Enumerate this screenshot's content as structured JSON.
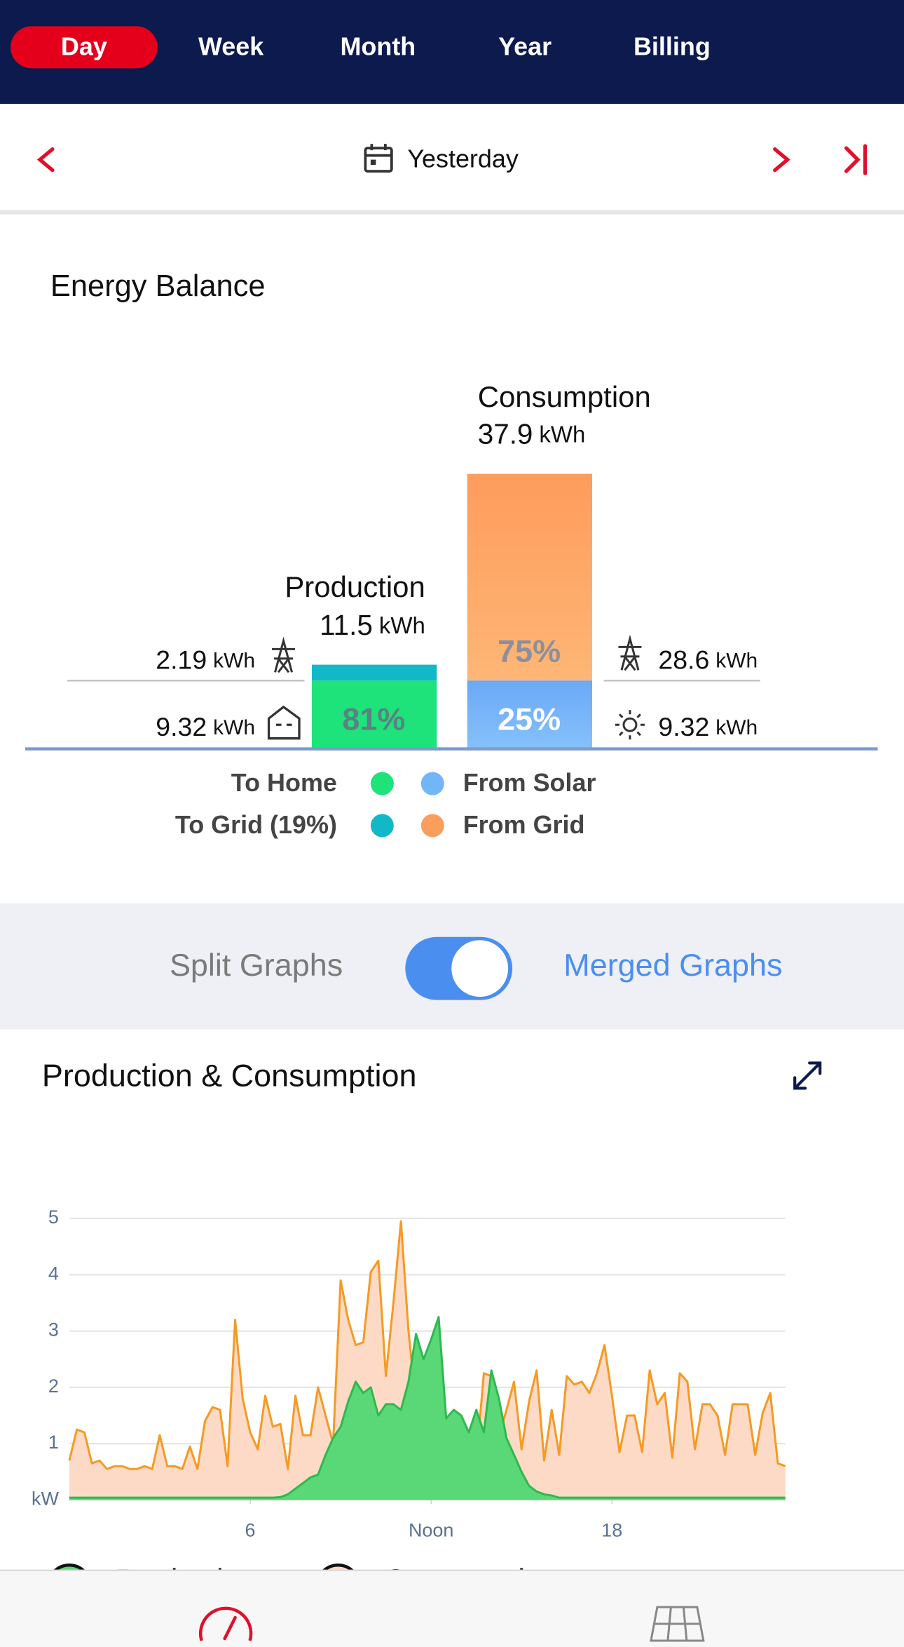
{
  "tabs": [
    "Day",
    "Week",
    "Month",
    "Year",
    "Billing"
  ],
  "active_tab": 0,
  "date_label": "Yesterday",
  "energy_balance": {
    "title": "Energy Balance",
    "unit": "kWh",
    "production": {
      "label": "Production",
      "total": 11.5,
      "to_grid": 2.19,
      "to_home": 9.32,
      "to_home_pct": "81%"
    },
    "consumption": {
      "label": "Consumption",
      "total": 37.9,
      "from_grid": 28.6,
      "from_solar": 9.32,
      "from_grid_pct": "75%",
      "from_solar_pct": "25%"
    },
    "legend": [
      {
        "label": "To Home",
        "color": "#1ee27a"
      },
      {
        "label": "To Grid (19%)",
        "color": "#12b8c8"
      },
      {
        "label": "From Solar",
        "color": "#72b6f7"
      },
      {
        "label": "From Grid",
        "color": "#fa9e5e"
      }
    ]
  },
  "graph_toggle": {
    "left": "Split Graphs",
    "right": "Merged Graphs",
    "merged": true
  },
  "chart_data": {
    "type": "area",
    "title": "Production & Consumption",
    "x": [
      0,
      0.25,
      0.5,
      0.75,
      1,
      1.25,
      1.5,
      1.75,
      2,
      2.25,
      2.5,
      2.75,
      3,
      3.25,
      3.5,
      3.75,
      4,
      4.25,
      4.5,
      4.75,
      5,
      5.25,
      5.5,
      5.75,
      6,
      6.25,
      6.5,
      6.75,
      7,
      7.25,
      7.5,
      7.75,
      8,
      8.25,
      8.5,
      8.75,
      9,
      9.25,
      9.5,
      9.75,
      10,
      10.25,
      10.5,
      10.75,
      11,
      11.25,
      11.5,
      11.75,
      12,
      12.25,
      12.5,
      12.75,
      13,
      13.25,
      13.5,
      13.75,
      14,
      14.25,
      14.5,
      14.75,
      15,
      15.25,
      15.5,
      15.75,
      16,
      16.25,
      16.5,
      16.75,
      17,
      17.25,
      17.5,
      17.75,
      18,
      18.25,
      18.5,
      18.75,
      19,
      19.25,
      19.5,
      19.75,
      20,
      20.25,
      20.5,
      20.75,
      21,
      21.25,
      21.5,
      21.75,
      22,
      22.25,
      22.5,
      22.75,
      23,
      23.25,
      23.5,
      23.75
    ],
    "xlim": [
      0,
      23.75
    ],
    "xticks": [
      6,
      {
        "value": 12,
        "label": "Noon"
      },
      18
    ],
    "ylim": [
      0,
      5
    ],
    "yticks": [
      {
        "value": 0,
        "label": "kW"
      },
      1,
      2,
      3,
      4,
      5
    ],
    "grid": true,
    "series": [
      {
        "name": "Consumption",
        "color": "#f59a23",
        "fill": "#fddac6",
        "values": [
          0.7,
          1.25,
          1.2,
          0.65,
          0.7,
          0.55,
          0.6,
          0.6,
          0.55,
          0.55,
          0.6,
          0.55,
          1.15,
          0.6,
          0.6,
          0.55,
          0.95,
          0.55,
          1.4,
          1.65,
          1.6,
          0.6,
          3.2,
          1.8,
          1.2,
          0.9,
          1.85,
          1.3,
          1.35,
          0.55,
          1.85,
          1.15,
          1.15,
          2.0,
          1.5,
          1.0,
          3.9,
          3.2,
          2.75,
          2.8,
          4.05,
          4.25,
          2.2,
          3.5,
          4.95,
          3.0,
          1.7,
          2.35,
          1.95,
          2.7,
          0.8,
          1.6,
          1.5,
          0.75,
          0.7,
          2.25,
          2.2,
          1.1,
          1.6,
          2.1,
          0.9,
          1.75,
          2.3,
          0.7,
          1.6,
          0.8,
          2.2,
          2.05,
          2.1,
          1.9,
          2.25,
          2.75,
          1.85,
          0.85,
          1.5,
          1.5,
          0.85,
          2.3,
          1.7,
          1.9,
          0.75,
          2.25,
          2.1,
          0.9,
          1.7,
          1.7,
          1.5,
          0.8,
          1.7,
          1.7,
          1.7,
          0.8,
          1.55,
          1.9,
          0.65,
          0.6
        ]
      },
      {
        "name": "Production",
        "color": "#2fb84f",
        "fill": "#5ad877",
        "values": [
          0.04,
          0.04,
          0.04,
          0.04,
          0.04,
          0.04,
          0.04,
          0.04,
          0.04,
          0.04,
          0.04,
          0.04,
          0.04,
          0.04,
          0.04,
          0.04,
          0.04,
          0.04,
          0.04,
          0.04,
          0.04,
          0.04,
          0.04,
          0.04,
          0.04,
          0.04,
          0.04,
          0.04,
          0.05,
          0.1,
          0.2,
          0.3,
          0.4,
          0.45,
          0.8,
          1.1,
          1.3,
          1.75,
          2.1,
          1.9,
          2.0,
          1.5,
          1.7,
          1.7,
          1.6,
          2.1,
          2.95,
          2.5,
          2.85,
          3.25,
          1.45,
          1.6,
          1.5,
          1.2,
          1.6,
          1.2,
          2.3,
          1.8,
          1.1,
          0.8,
          0.5,
          0.25,
          0.15,
          0.1,
          0.08,
          0.04,
          0.04,
          0.04,
          0.04,
          0.04,
          0.04,
          0.04,
          0.04,
          0.04,
          0.04,
          0.04,
          0.04,
          0.04,
          0.04,
          0.04,
          0.04,
          0.04,
          0.04,
          0.04,
          0.04,
          0.04,
          0.04,
          0.04,
          0.04,
          0.04,
          0.04,
          0.04,
          0.04,
          0.04,
          0.04,
          0.04
        ]
      }
    ]
  }
}
